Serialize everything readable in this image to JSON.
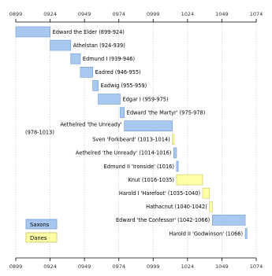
{
  "chart_data": {
    "type": "gantt",
    "title": "",
    "xlabel": "",
    "ylabel": "",
    "xlim": [
      899,
      1074
    ],
    "ticks": [
      "0899",
      "0924",
      "0949",
      "0974",
      "0999",
      "1024",
      "1049",
      "1074"
    ],
    "grid": true,
    "legend": {
      "position": "bottom-left",
      "entries": [
        {
          "name": "Saxons",
          "color": "#a9c8ef"
        },
        {
          "name": "Danes",
          "color": "#ffffa8"
        }
      ]
    },
    "series": [
      {
        "name": "Saxons",
        "color": "#a9c8ef",
        "border": "#6c9ad2"
      },
      {
        "name": "Danes",
        "color": "#ffffa8",
        "border": "#c9c35a"
      }
    ],
    "reigns": [
      {
        "label": "Edward the Elder (899-924)",
        "start": 899,
        "end": 924,
        "house": "Saxons",
        "label_side": "right"
      },
      {
        "label": "Athelstan (924-939)",
        "start": 924,
        "end": 939,
        "house": "Saxons",
        "label_side": "right"
      },
      {
        "label": "Edmund I (939-946)",
        "start": 939,
        "end": 946,
        "house": "Saxons",
        "label_side": "right"
      },
      {
        "label": "Eadred (946-955)",
        "start": 946,
        "end": 955,
        "house": "Saxons",
        "label_side": "right"
      },
      {
        "label": "Eadwig (955-959)",
        "start": 955,
        "end": 959,
        "house": "Saxons",
        "label_side": "right"
      },
      {
        "label": "Edgar I (959-975)",
        "start": 959,
        "end": 975,
        "house": "Saxons",
        "label_side": "right"
      },
      {
        "label": "Edward 'the Martyr' (975-978)",
        "start": 975,
        "end": 978,
        "house": "Saxons",
        "label_side": "right"
      },
      {
        "label": "Aethelred 'the Unready' (978-1013)",
        "label_lines": [
          "Aethelred 'the Unready'",
          "(978-1013)"
        ],
        "start": 978,
        "end": 1013,
        "house": "Saxons",
        "label_side": "left"
      },
      {
        "label": "Sven 'Forkbeard' (1013-1014)",
        "start": 1013,
        "end": 1014,
        "house": "Danes",
        "label_side": "left"
      },
      {
        "label": "Aethelred 'the Unready' (1014-1016)",
        "start": 1014,
        "end": 1016,
        "house": "Saxons",
        "label_side": "left"
      },
      {
        "label": "Edmund II 'Ironside' (1016)",
        "start": 1016,
        "end": 1017,
        "house": "Saxons",
        "label_side": "left"
      },
      {
        "label": "Knut (1016-1035)",
        "start": 1016,
        "end": 1035,
        "house": "Danes",
        "label_side": "left"
      },
      {
        "label": "Harold I 'Harefoot' (1035-1040)",
        "start": 1035,
        "end": 1040,
        "house": "Danes",
        "label_side": "left"
      },
      {
        "label": "Hathacnut (1040-1042)",
        "start": 1040,
        "end": 1042,
        "house": "Danes",
        "label_side": "left"
      },
      {
        "label": "Edward 'the Confessor' (1042-1066)",
        "start": 1042,
        "end": 1066,
        "house": "Saxons",
        "label_side": "left"
      },
      {
        "label": "Harold II 'Godwinson' (1066)",
        "start": 1066,
        "end": 1067,
        "house": "Saxons",
        "label_side": "left"
      }
    ]
  }
}
